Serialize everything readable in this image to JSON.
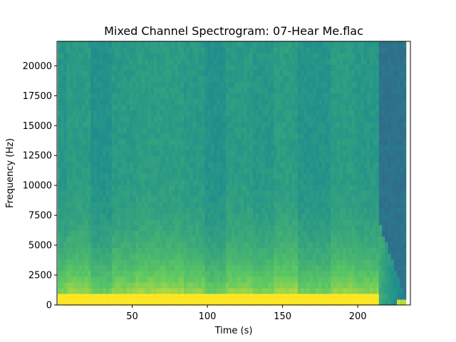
{
  "chart_data": {
    "type": "heatmap",
    "title": "Mixed Channel Spectrogram: 07-Hear Me.flac",
    "xlabel": "Time (s)",
    "ylabel": "Frequency (Hz)",
    "xlim": [
      0,
      235
    ],
    "ylim": [
      0,
      22050
    ],
    "x_ticks": [
      50,
      100,
      150,
      200
    ],
    "y_ticks": [
      0,
      2500,
      5000,
      7500,
      10000,
      12500,
      15000,
      17500,
      20000
    ],
    "colormap": "viridis",
    "grid": false,
    "data_extent_x": [
      0.5,
      232
    ],
    "time_segments": [
      {
        "t0": 0.5,
        "t1": 7,
        "level": 0.5
      },
      {
        "t0": 7,
        "t1": 22,
        "level": 0.58
      },
      {
        "t0": 22,
        "t1": 37,
        "level": 0.42
      },
      {
        "t0": 37,
        "t1": 52,
        "level": 0.55
      },
      {
        "t0": 52,
        "t1": 84,
        "level": 0.6
      },
      {
        "t0": 84,
        "t1": 99,
        "level": 0.54
      },
      {
        "t0": 99,
        "t1": 113,
        "level": 0.42
      },
      {
        "t0": 113,
        "t1": 130,
        "level": 0.56
      },
      {
        "t0": 130,
        "t1": 145,
        "level": 0.5
      },
      {
        "t0": 145,
        "t1": 160,
        "level": 0.6
      },
      {
        "t0": 160,
        "t1": 183,
        "level": 0.45
      },
      {
        "t0": 183,
        "t1": 198,
        "level": 0.58
      },
      {
        "t0": 198,
        "t1": 214,
        "level": 0.52
      },
      {
        "t0": 214,
        "t1": 232,
        "level": 0.2
      }
    ]
  }
}
